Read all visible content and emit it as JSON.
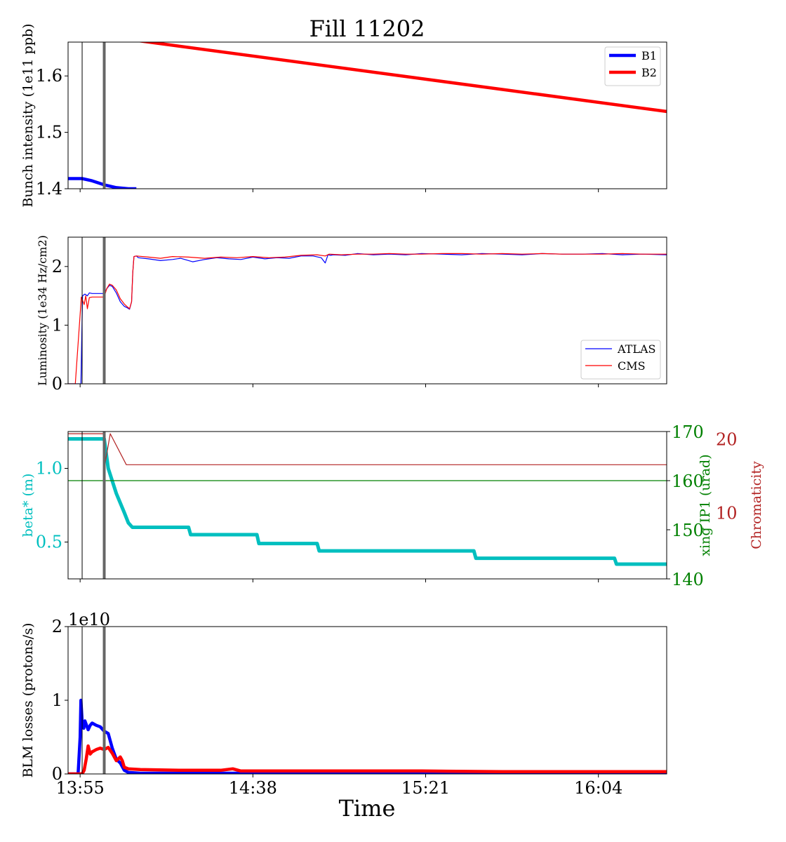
{
  "title": "Fill 11202",
  "x_axis": {
    "label": "Time",
    "tick_labels": [
      "13:55",
      "14:38",
      "15:21",
      "16:04"
    ],
    "ticks_min": [
      835,
      878,
      921,
      964
    ],
    "range_min": [
      832,
      981
    ]
  },
  "markers_min": {
    "thin": 835.5,
    "thick": 841
  },
  "colors": {
    "B1": "#0000ff",
    "B2": "#ff0000",
    "ATLAS": "#0000ff",
    "CMS": "#ff0000",
    "beta": "#00bfbf",
    "xing": "#008000",
    "chroma": "#b22222",
    "marker_thin": "#000000",
    "marker_thick": "#666666"
  },
  "chart_data": [
    {
      "type": "line",
      "ylabel": "Bunch intensity (1e11 ppb)",
      "ylim": [
        1.4,
        1.66
      ],
      "yticks": [
        1.4,
        1.5,
        1.6
      ],
      "legend": "top-right",
      "series": [
        {
          "name": "B1",
          "x_min": [
            832,
            835,
            835.5,
            838,
            841,
            844,
            847,
            849
          ],
          "y": [
            1.418,
            1.418,
            1.418,
            1.414,
            1.407,
            1.402,
            1.4,
            1.4
          ]
        },
        {
          "name": "B2",
          "x_min": [
            849,
            981
          ],
          "y": [
            1.663,
            1.537
          ]
        }
      ]
    },
    {
      "type": "line",
      "ylabel": "Luminosity (1e34 Hz/cm2)",
      "ylim": [
        0,
        2.5
      ],
      "yticks": [
        0,
        1,
        2
      ],
      "legend": "bottom-right",
      "series": [
        {
          "name": "ATLAS",
          "x_min": [
            832,
            835.2,
            835.6,
            836.2,
            836.8,
            837.3,
            838,
            841,
            841.6,
            842.3,
            843,
            844,
            845,
            846,
            846.6,
            847.3,
            847.8,
            848.1,
            848.4,
            849,
            849.5,
            852,
            855,
            858,
            860,
            863,
            866,
            869,
            872,
            875,
            878,
            881,
            884,
            887,
            890,
            893,
            895,
            896,
            896.7,
            897.3,
            898,
            901,
            904,
            908,
            912,
            916,
            920,
            925,
            930,
            935,
            940,
            945,
            950,
            955,
            960,
            965,
            970,
            975,
            981
          ],
          "y": [
            0,
            0,
            1.5,
            1.53,
            1.5,
            1.55,
            1.54,
            1.54,
            1.62,
            1.68,
            1.66,
            1.55,
            1.4,
            1.32,
            1.3,
            1.27,
            1.4,
            1.9,
            2.17,
            2.18,
            2.15,
            2.13,
            2.1,
            2.12,
            2.14,
            2.08,
            2.12,
            2.15,
            2.13,
            2.12,
            2.16,
            2.13,
            2.15,
            2.14,
            2.18,
            2.18,
            2.15,
            2.06,
            2.2,
            2.19,
            2.2,
            2.19,
            2.22,
            2.2,
            2.21,
            2.2,
            2.22,
            2.21,
            2.2,
            2.22,
            2.21,
            2.2,
            2.22,
            2.21,
            2.21,
            2.22,
            2.2,
            2.21,
            2.2
          ]
        },
        {
          "name": "CMS",
          "x_min": [
            832,
            833.8,
            835.3,
            836,
            836.4,
            836.8,
            837.3,
            838,
            841,
            841.6,
            842.3,
            843,
            844,
            845,
            846,
            846.6,
            847.3,
            847.8,
            848.1,
            848.4,
            849,
            852,
            855,
            858,
            862,
            866,
            870,
            874,
            878,
            882,
            886,
            890,
            894,
            896,
            897,
            900,
            904,
            908,
            912,
            916,
            920,
            925,
            930,
            935,
            940,
            945,
            950,
            955,
            960,
            965,
            970,
            975,
            981
          ],
          "y": [
            0,
            0,
            1.48,
            1.35,
            1.5,
            1.28,
            1.47,
            1.48,
            1.48,
            1.62,
            1.7,
            1.68,
            1.6,
            1.45,
            1.36,
            1.32,
            1.28,
            1.4,
            1.9,
            2.17,
            2.18,
            2.16,
            2.14,
            2.17,
            2.16,
            2.14,
            2.16,
            2.15,
            2.17,
            2.15,
            2.16,
            2.19,
            2.2,
            2.18,
            2.21,
            2.2,
            2.21,
            2.21,
            2.22,
            2.21,
            2.21,
            2.22,
            2.22,
            2.21,
            2.22,
            2.21,
            2.22,
            2.21,
            2.21,
            2.21,
            2.22,
            2.21,
            2.21
          ]
        }
      ]
    },
    {
      "type": "line",
      "ylabel": "beta* (m)",
      "ylim": [
        0.25,
        1.25
      ],
      "yticks": [
        0.5,
        1.0
      ],
      "ytick_labels": [
        "0.5",
        "1.0"
      ],
      "secondary_axes": [
        {
          "label": "xing IP1 (urad)",
          "ylim": [
            140,
            170
          ],
          "yticks": [
            140,
            150,
            160,
            170
          ]
        },
        {
          "label": "Chromaticity",
          "ylim": [
            1,
            21
          ],
          "yticks": [
            10,
            20
          ]
        }
      ],
      "series": [
        {
          "name": "beta*",
          "axis": "left",
          "x_min": [
            832,
            841,
            842,
            844,
            846,
            847,
            848,
            862,
            862.5,
            879,
            879.5,
            894,
            894.5,
            933,
            933.5,
            968,
            968.5,
            981
          ],
          "y": [
            1.2,
            1.2,
            1.0,
            0.83,
            0.7,
            0.63,
            0.6,
            0.6,
            0.55,
            0.55,
            0.49,
            0.49,
            0.44,
            0.44,
            0.39,
            0.39,
            0.35,
            0.35
          ]
        },
        {
          "name": "xing IP1",
          "axis": "xing",
          "x_min": [
            832,
            981
          ],
          "y": [
            160,
            160
          ]
        },
        {
          "name": "Chromaticity",
          "axis": "chroma",
          "x_min": [
            832,
            841,
            841,
            842.5,
            846.5,
            981
          ],
          "y": [
            20.7,
            20.7,
            16,
            20.7,
            16.5,
            16.5
          ]
        }
      ]
    },
    {
      "type": "line",
      "ylabel": "BLM losses (protons/s)",
      "ylim": [
        0,
        2
      ],
      "yticks": [
        0,
        1,
        2
      ],
      "offset_text": "1e10",
      "series": [
        {
          "name": "B1",
          "x_min": [
            832,
            834.5,
            835,
            835.2,
            835.5,
            835.9,
            836.2,
            837,
            837.5,
            838,
            839,
            840,
            841,
            842,
            843,
            844,
            845,
            846,
            847,
            850,
            860,
            880,
            900,
            920,
            940,
            960,
            981
          ],
          "y": [
            0,
            0,
            0.5,
            1.0,
            0.72,
            0.62,
            0.72,
            0.6,
            0.66,
            0.69,
            0.66,
            0.64,
            0.58,
            0.55,
            0.35,
            0.2,
            0.15,
            0.05,
            0.02,
            0.01,
            0.01,
            0.01,
            0.01,
            0.01,
            0.01,
            0.01,
            0.01
          ]
        },
        {
          "name": "B2",
          "x_min": [
            832,
            835.5,
            836,
            836.5,
            837,
            837.5,
            838,
            839,
            840,
            841,
            842,
            843,
            844,
            845,
            845.5,
            846,
            847,
            850,
            860,
            870,
            873,
            875,
            890,
            900,
            920,
            940,
            960,
            981
          ],
          "y": [
            0,
            0,
            0.05,
            0.2,
            0.38,
            0.27,
            0.3,
            0.33,
            0.35,
            0.33,
            0.36,
            0.28,
            0.18,
            0.23,
            0.18,
            0.09,
            0.07,
            0.06,
            0.05,
            0.05,
            0.07,
            0.04,
            0.04,
            0.04,
            0.04,
            0.03,
            0.03,
            0.03
          ]
        }
      ]
    }
  ]
}
